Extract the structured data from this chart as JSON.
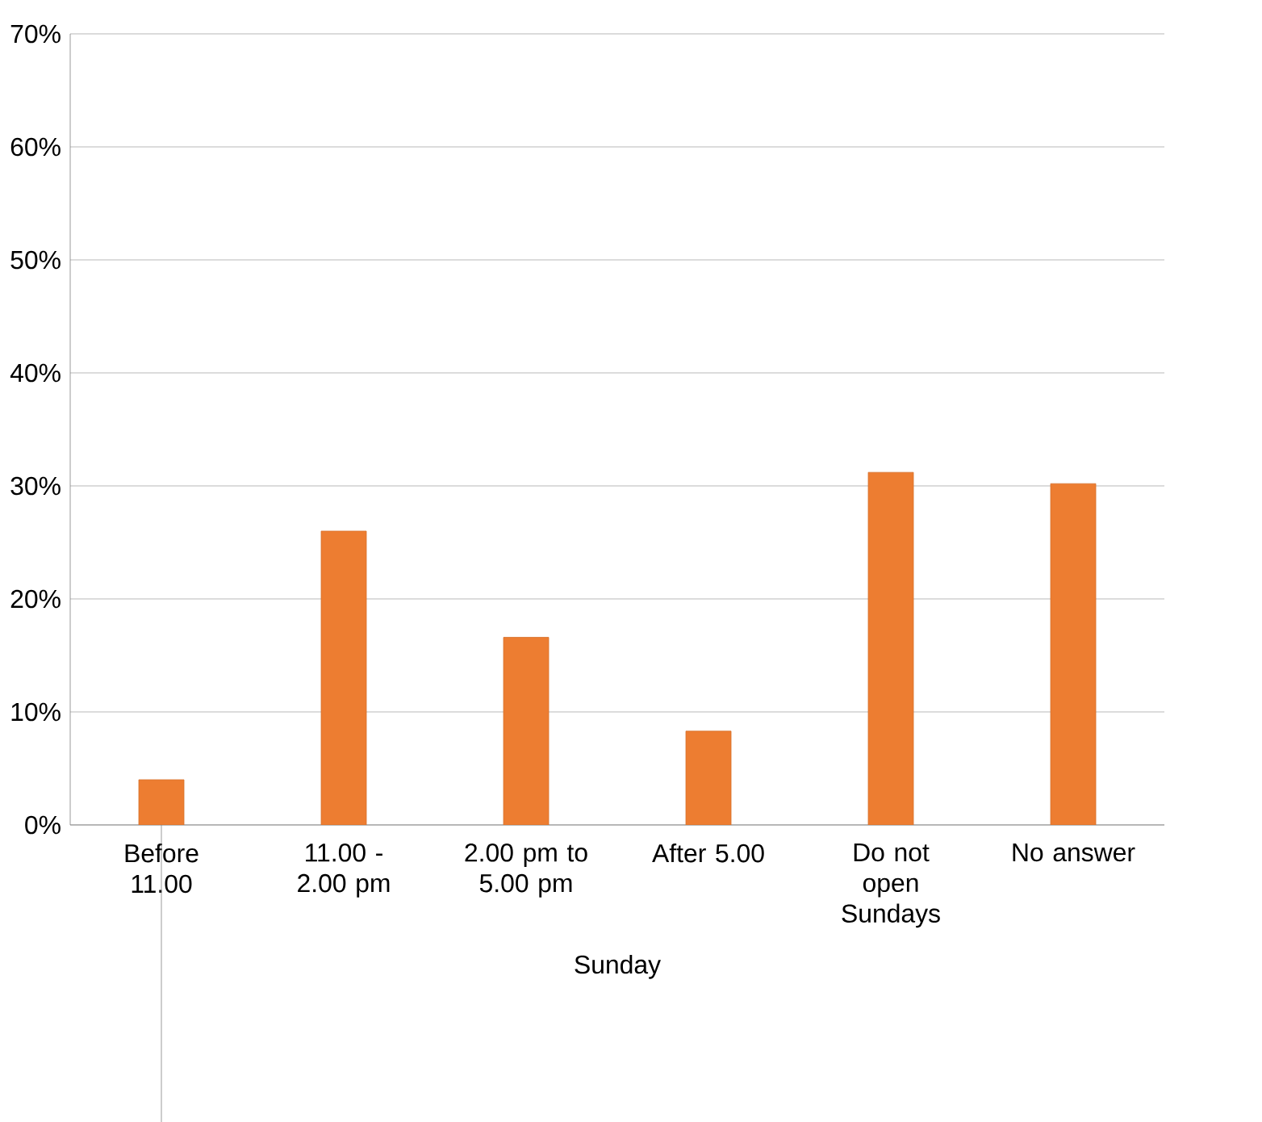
{
  "chart_data": {
    "type": "bar",
    "xlabel": "Sunday",
    "categories": [
      "Before 11.00",
      "11.00 - 2.00 pm",
      "2.00 pm to 5.00 pm",
      "After 5.00",
      "Do not open Sundays",
      "No answer"
    ],
    "values": [
      4.0,
      26.0,
      16.6,
      8.3,
      31.2,
      30.2
    ],
    "color": "#ed7d31",
    "ylim": [
      0,
      70
    ],
    "yticks": [
      {
        "value": 0,
        "label": "0%"
      },
      {
        "value": 10,
        "label": "10%"
      },
      {
        "value": 20,
        "label": "20%"
      },
      {
        "value": 30,
        "label": "30%"
      },
      {
        "value": 40,
        "label": "40%"
      },
      {
        "value": 50,
        "label": "50%"
      },
      {
        "value": 60,
        "label": "60%"
      },
      {
        "value": 70,
        "label": "70%"
      }
    ],
    "grid": "y"
  }
}
